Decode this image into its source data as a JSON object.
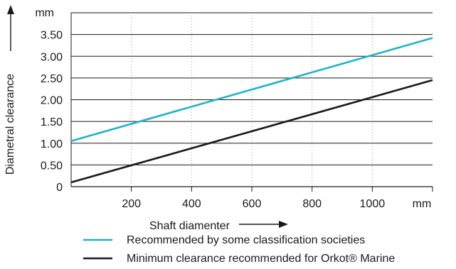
{
  "chart_data": {
    "type": "line",
    "xlabel": "Shaft diamenter",
    "ylabel": "Diametral clearance",
    "x_unit": "mm",
    "y_unit": "mm",
    "xlim": [
      0,
      1200
    ],
    "ylim": [
      0,
      4.0
    ],
    "x_ticks": [
      200,
      400,
      600,
      800,
      1000
    ],
    "x_tick_labels": [
      "200",
      "400",
      "600",
      "800",
      "1000"
    ],
    "y_ticks": [
      0,
      0.5,
      1.0,
      1.5,
      2.0,
      2.5,
      3.0,
      3.5
    ],
    "y_tick_labels": [
      "0",
      "0.50",
      "1.00",
      "1.50",
      "2.00",
      "2.50",
      "3.00",
      "3.50"
    ],
    "grid": "horizontal solid, vertical dotted",
    "legend_position": "bottom",
    "series": [
      {
        "name": "Recommended by some classification societies",
        "color": "#1fb3c6",
        "x": [
          0,
          1200
        ],
        "y": [
          1.05,
          3.42
        ]
      },
      {
        "name": "Minimum clearance recommended for Orkot® Marine",
        "color": "#1a1a1a",
        "x": [
          0,
          1200
        ],
        "y": [
          0.1,
          2.45
        ]
      }
    ]
  }
}
